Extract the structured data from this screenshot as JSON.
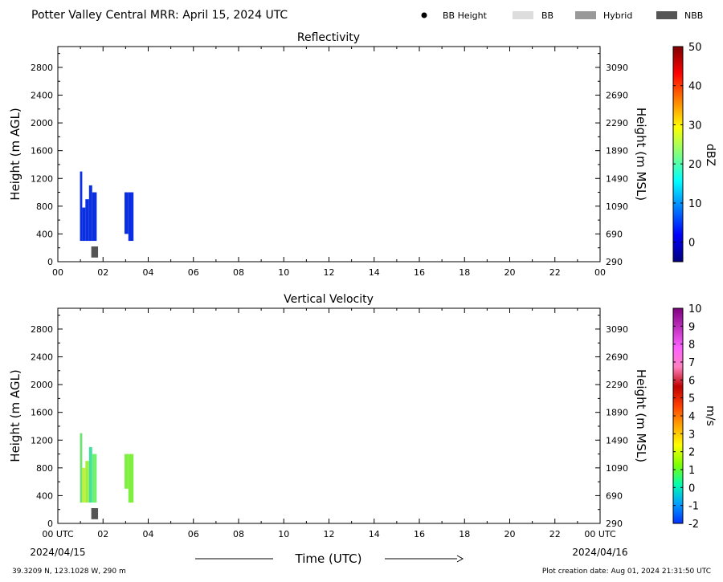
{
  "header": {
    "title": "Potter Valley Central MRR:  April 15, 2024 UTC",
    "legend": [
      {
        "label": "BB Height",
        "kind": "dot",
        "color": "#000000"
      },
      {
        "label": "BB",
        "kind": "swatch",
        "color": "#dddddd"
      },
      {
        "label": "Hybrid",
        "kind": "swatch",
        "color": "#999999"
      },
      {
        "label": "NBB",
        "kind": "swatch",
        "color": "#555555"
      }
    ]
  },
  "footer": {
    "location": "39.3209 N, 123.1028 W, 290 m",
    "creation": "Plot creation date: Aug 01, 2024 21:31:50 UTC",
    "x_axis_title": "Time (UTC)",
    "start_date": "2024/04/15",
    "end_date": "2024/04/16"
  },
  "chart_data": [
    {
      "type": "heatmap",
      "title": "Reflectivity",
      "xlabel": "",
      "ylabel": "Height (m AGL)",
      "ylabel_right": "Height (m MSL)",
      "xlim": [
        0,
        24
      ],
      "ylim": [
        0,
        3100
      ],
      "x_ticks": [
        "00",
        "02",
        "04",
        "06",
        "08",
        "10",
        "12",
        "14",
        "16",
        "18",
        "20",
        "22",
        "00"
      ],
      "y_ticks": [
        0,
        400,
        800,
        1200,
        1600,
        2000,
        2400,
        2800
      ],
      "y_ticks_right": [
        290,
        690,
        1090,
        1490,
        1890,
        2290,
        2690,
        3090
      ],
      "colorbar": {
        "label": "dBZ",
        "min": -5,
        "max": 50,
        "ticks": [
          0,
          10,
          20,
          30,
          40,
          50
        ],
        "stops": [
          "#00007f",
          "#0000ff",
          "#007fff",
          "#00ffff",
          "#7fff7f",
          "#ffff00",
          "#ff7f00",
          "#ff0000",
          "#7f0000"
        ]
      },
      "echoes": [
        {
          "t0": 0.98,
          "t1": 1.08,
          "h0": 300,
          "h1": 1300,
          "color": "#0a2fe0"
        },
        {
          "t0": 1.08,
          "t1": 1.22,
          "h0": 300,
          "h1": 780,
          "color": "#0a2fe0"
        },
        {
          "t0": 1.22,
          "t1": 1.38,
          "h0": 300,
          "h1": 900,
          "color": "#0a2fe0"
        },
        {
          "t0": 1.38,
          "t1": 1.52,
          "h0": 300,
          "h1": 1100,
          "color": "#0a2fe0"
        },
        {
          "t0": 1.52,
          "t1": 1.72,
          "h0": 300,
          "h1": 1000,
          "color": "#0a2fe0"
        },
        {
          "t0": 2.95,
          "t1": 3.12,
          "h0": 400,
          "h1": 1000,
          "color": "#0a2fe0"
        },
        {
          "t0": 3.12,
          "t1": 3.35,
          "h0": 300,
          "h1": 1000,
          "color": "#0a2fe0"
        }
      ],
      "bb_marks": [
        {
          "t0": 1.48,
          "t1": 1.78,
          "h0": 60,
          "h1": 220,
          "type": "NBB"
        }
      ]
    },
    {
      "type": "heatmap",
      "title": "Vertical Velocity",
      "xlabel": "Time (UTC)",
      "ylabel": "Height (m AGL)",
      "ylabel_right": "Height (m MSL)",
      "xlim": [
        0,
        24
      ],
      "ylim": [
        0,
        3100
      ],
      "x_ticks": [
        "00 UTC",
        "02",
        "04",
        "06",
        "08",
        "10",
        "12",
        "14",
        "16",
        "18",
        "20",
        "22",
        "00 UTC"
      ],
      "y_ticks": [
        0,
        400,
        800,
        1200,
        1600,
        2000,
        2400,
        2800
      ],
      "y_ticks_right": [
        290,
        690,
        1090,
        1490,
        1890,
        2290,
        2690,
        3090
      ],
      "colorbar": {
        "label": "m/s",
        "min": -2,
        "max": 10,
        "ticks": [
          -2,
          -1,
          0,
          1,
          2,
          3,
          4,
          5,
          6,
          7,
          8,
          9,
          10
        ],
        "stops": [
          "#0030ff",
          "#00a0ff",
          "#00ffb0",
          "#7fff00",
          "#ffff00",
          "#ffa500",
          "#ff4000",
          "#c00000",
          "#ff80c0",
          "#ff60ff",
          "#c030c0",
          "#800080"
        ]
      },
      "echoes": [
        {
          "t0": 0.98,
          "t1": 1.08,
          "h0": 300,
          "h1": 1300,
          "color": "#70e070"
        },
        {
          "t0": 1.08,
          "t1": 1.22,
          "h0": 300,
          "h1": 800,
          "color": "#c0f040"
        },
        {
          "t0": 1.22,
          "t1": 1.38,
          "h0": 300,
          "h1": 900,
          "color": "#a0f040"
        },
        {
          "t0": 1.38,
          "t1": 1.52,
          "h0": 300,
          "h1": 1100,
          "color": "#40e0a0"
        },
        {
          "t0": 1.52,
          "t1": 1.72,
          "h0": 300,
          "h1": 1000,
          "color": "#70f070"
        },
        {
          "t0": 2.95,
          "t1": 3.12,
          "h0": 500,
          "h1": 1000,
          "color": "#80f040"
        },
        {
          "t0": 3.12,
          "t1": 3.35,
          "h0": 300,
          "h1": 1000,
          "color": "#80f040"
        }
      ],
      "bb_marks": [
        {
          "t0": 1.48,
          "t1": 1.78,
          "h0": 60,
          "h1": 220,
          "type": "NBB"
        }
      ]
    }
  ]
}
